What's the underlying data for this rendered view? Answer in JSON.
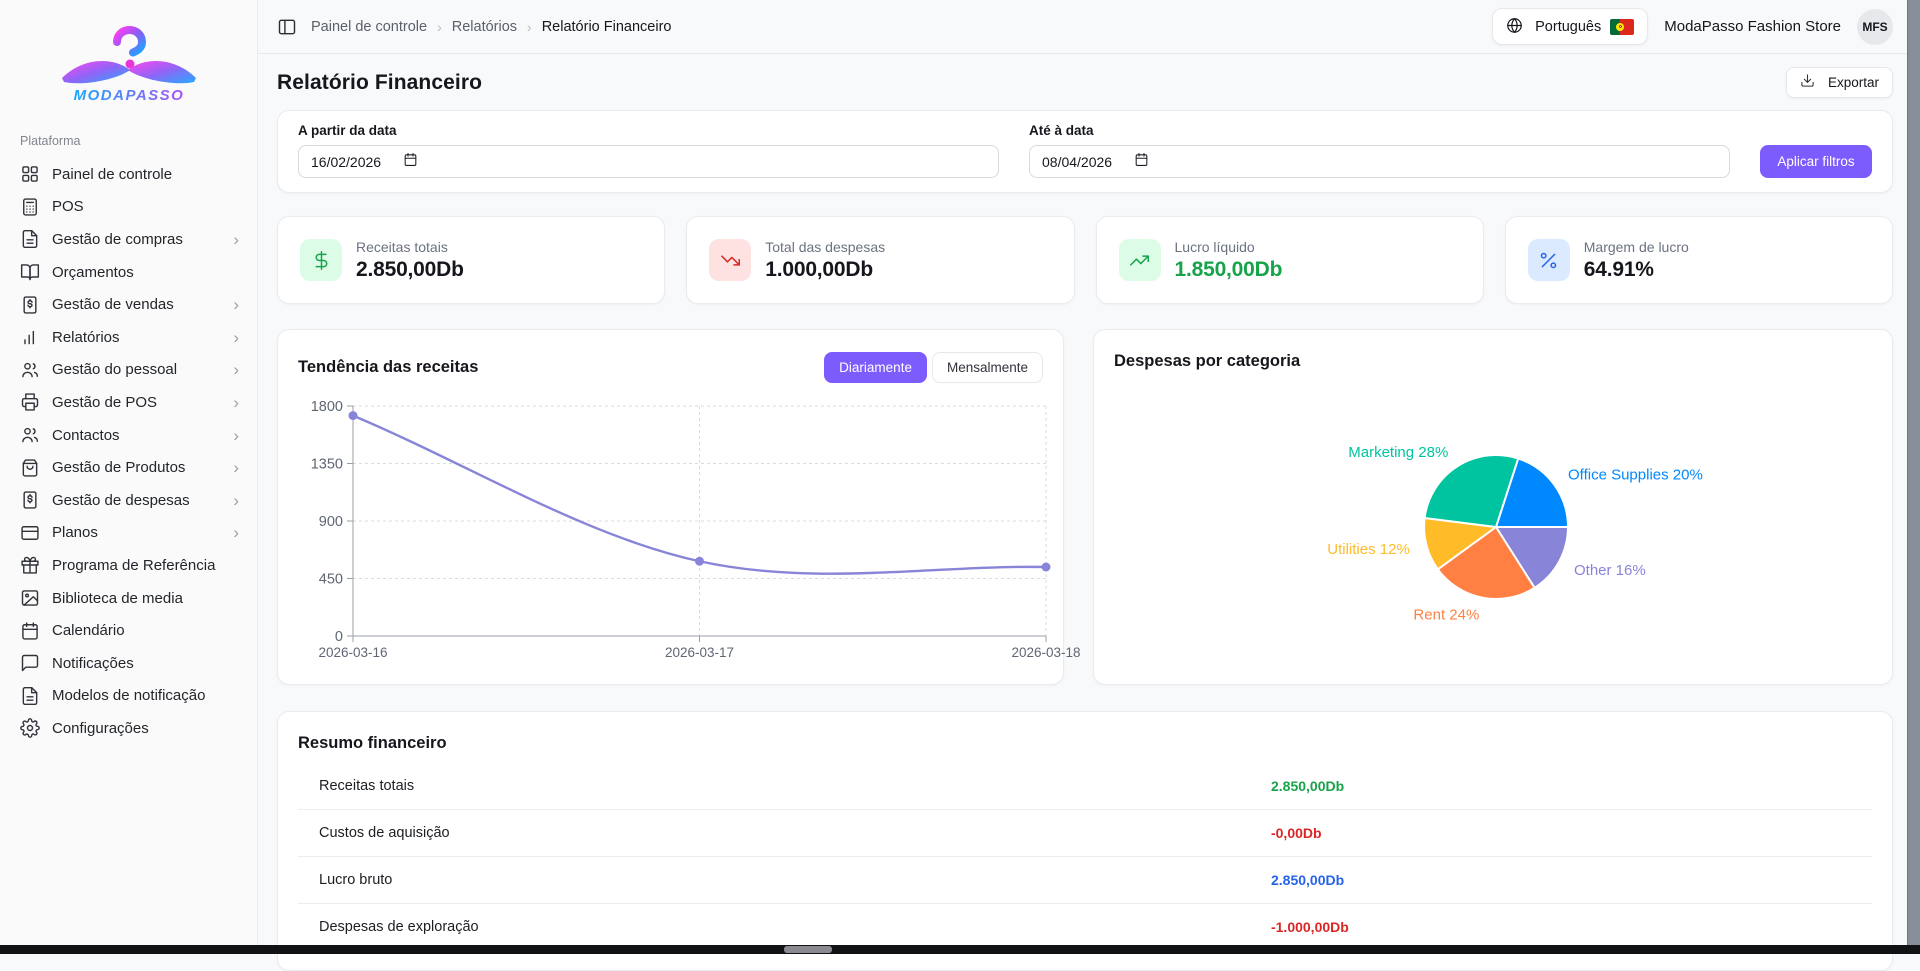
{
  "brand": {
    "logo_text": "MODAPASSO",
    "platform_label": "Plataforma"
  },
  "sidebar": {
    "items": [
      {
        "label": "Painel de controle",
        "icon": "dashboard-icon",
        "chevron": false
      },
      {
        "label": "POS",
        "icon": "pos-icon",
        "chevron": false
      },
      {
        "label": "Gestão de compras",
        "icon": "purchases-icon",
        "chevron": true
      },
      {
        "label": "Orçamentos",
        "icon": "budgets-icon",
        "chevron": false
      },
      {
        "label": "Gestão de vendas",
        "icon": "sales-icon",
        "chevron": true
      },
      {
        "label": "Relatórios",
        "icon": "reports-icon",
        "chevron": true
      },
      {
        "label": "Gestão do pessoal",
        "icon": "staff-icon",
        "chevron": true
      },
      {
        "label": "Gestão de POS",
        "icon": "pos-terminal-icon",
        "chevron": true
      },
      {
        "label": "Contactos",
        "icon": "contacts-icon",
        "chevron": true
      },
      {
        "label": "Gestão de Produtos",
        "icon": "products-icon",
        "chevron": true
      },
      {
        "label": "Gestão de despesas",
        "icon": "expenses-icon",
        "chevron": true
      },
      {
        "label": "Planos",
        "icon": "plans-icon",
        "chevron": true
      },
      {
        "label": "Programa de Referência",
        "icon": "referral-icon",
        "chevron": false
      },
      {
        "label": "Biblioteca de media",
        "icon": "media-icon",
        "chevron": false
      },
      {
        "label": "Calendário",
        "icon": "calendar-icon",
        "chevron": false
      },
      {
        "label": "Notificações",
        "icon": "notifications-icon",
        "chevron": false
      },
      {
        "label": "Modelos de notificação",
        "icon": "templates-icon",
        "chevron": false
      },
      {
        "label": "Configurações",
        "icon": "settings-icon",
        "chevron": false
      }
    ]
  },
  "topbar": {
    "breadcrumb": [
      "Painel de controle",
      "Relatórios",
      "Relatório Financeiro"
    ],
    "language": "Português",
    "language_icon": "globe-icon",
    "flag_icon": "portugal-flag-icon",
    "store_name": "ModaPasso Fashion Store",
    "avatar_initials": "MFS"
  },
  "page": {
    "title": "Relatório Financeiro",
    "export_label": "Exportar",
    "export_icon": "download-icon"
  },
  "filters": {
    "from_label": "A partir da data",
    "from_value": "16/02/2026",
    "to_label": "Até à data",
    "to_value": "08/04/2026",
    "apply_label": "Aplicar filtros",
    "calendar_icon": "calendar-icon"
  },
  "stats": [
    {
      "label": "Receitas totais",
      "value": "2.850,00Db",
      "icon": "dollar-icon",
      "icon_color": "#16a34a",
      "icon_bg": "#dcfce7",
      "value_color": "#15171c"
    },
    {
      "label": "Total das despesas",
      "value": "1.000,00Db",
      "icon": "trend-down-icon",
      "icon_color": "#dc2626",
      "icon_bg": "#fee2e2",
      "value_color": "#15171c"
    },
    {
      "label": "Lucro líquido",
      "value": "1.850,00Db",
      "icon": "trend-up-icon",
      "icon_color": "#16a34a",
      "icon_bg": "#dcfce7",
      "value_color": "#16a34a"
    },
    {
      "label": "Margem de lucro",
      "value": "64.91%",
      "icon": "percent-icon",
      "icon_color": "#2563eb",
      "icon_bg": "#dbeafe",
      "value_color": "#15171c"
    }
  ],
  "chart_data": [
    {
      "type": "line",
      "title": "Tendência das receitas",
      "toggles": [
        "Diariamente",
        "Mensalmente"
      ],
      "active_toggle": "Diariamente",
      "x": [
        "2026-03-16",
        "2026-03-17",
        "2026-03-18"
      ],
      "series": [
        {
          "name": "Receitas",
          "values": [
            1725,
            585,
            540
          ]
        }
      ],
      "ylim": [
        0,
        1800
      ],
      "yticks": [
        0,
        450,
        900,
        1350,
        1800
      ],
      "line_color": "#8884d8",
      "grid": "dashed",
      "legend": "none"
    },
    {
      "type": "pie",
      "title": "Despesas por categoria",
      "slices": [
        {
          "name": "Office Supplies",
          "pct": 20,
          "color": "#0088FE"
        },
        {
          "name": "Other",
          "pct": 16,
          "color": "#8884d8"
        },
        {
          "name": "Rent",
          "pct": 24,
          "color": "#FF8042"
        },
        {
          "name": "Utilities",
          "pct": 12,
          "color": "#FFBB28"
        },
        {
          "name": "Marketing",
          "pct": 28,
          "color": "#00C49F"
        }
      ],
      "start_angle_deg": 18,
      "direction": "clockwise",
      "label_format": "{name} {pct}%"
    }
  ],
  "summary": {
    "title": "Resumo financeiro",
    "rows": [
      {
        "label": "Receitas totais",
        "value": "2.850,00Db",
        "color": "#16a34a"
      },
      {
        "label": "Custos de aquisição",
        "value": "-0,00Db",
        "color": "#dc2626"
      },
      {
        "label": "Lucro bruto",
        "value": "2.850,00Db",
        "color": "#2563eb"
      },
      {
        "label": "Despesas de exploração",
        "value": "-1.000,00Db",
        "color": "#dc2626"
      }
    ]
  },
  "colors": {
    "primary": "#7C5CFC",
    "page_bg": "#f8f9fb",
    "card_border": "#e9ebef",
    "logo_gradient": [
      "#ff3df0",
      "#8b5cf6",
      "#1aa7ff"
    ]
  }
}
